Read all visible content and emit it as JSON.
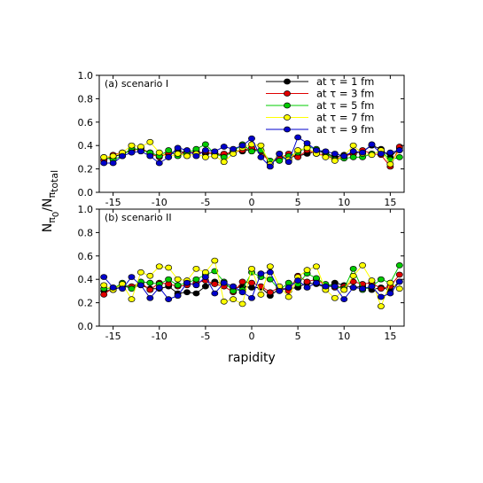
{
  "chart_data": {
    "type": "line",
    "xlabel": "rapidity",
    "ylabel": {
      "main": "N",
      "sub1": "π",
      "sub2": "0",
      "slash": "/N",
      "sub3": "π",
      "sub4": "total"
    },
    "xlim": [
      -16.5,
      16.5
    ],
    "ylim": [
      0,
      1
    ],
    "x_ticks": [
      -15,
      -10,
      -5,
      0,
      5,
      10,
      15
    ],
    "y_ticks": [
      0.0,
      0.2,
      0.4,
      0.6,
      0.8,
      1.0
    ],
    "y_tick_labels": [
      "0.0",
      "0.2",
      "0.4",
      "0.6",
      "0.8",
      "1.0"
    ],
    "x": [
      -16,
      -15,
      -14,
      -13,
      -12,
      -11,
      -10,
      -9,
      -8,
      -7,
      -6,
      -5,
      -4,
      -3,
      -2,
      -1,
      0,
      1,
      2,
      3,
      4,
      5,
      6,
      7,
      8,
      9,
      10,
      11,
      12,
      13,
      14,
      15,
      16
    ],
    "legend_entries": [
      {
        "prefix": "at",
        "tau": "τ",
        "suffix": "= 1 fm"
      },
      {
        "prefix": "at",
        "tau": "τ",
        "suffix": "= 3 fm"
      },
      {
        "prefix": "at",
        "tau": "τ",
        "suffix": "= 5 fm"
      },
      {
        "prefix": "at",
        "tau": "τ",
        "suffix": "= 7 fm"
      },
      {
        "prefix": "at",
        "tau": "τ",
        "suffix": "= 9 fm"
      }
    ],
    "series_colors": [
      "#000000",
      "#e00000",
      "#00cc00",
      "#ffff00",
      "#0000cc"
    ],
    "panels": [
      {
        "label": "(a) scenario I",
        "series": [
          {
            "values": [
              0.28,
              0.3,
              0.33,
              0.36,
              0.37,
              0.34,
              0.31,
              0.33,
              0.36,
              0.33,
              0.35,
              0.33,
              0.34,
              0.31,
              0.36,
              0.35,
              0.37,
              0.35,
              0.26,
              0.3,
              0.3,
              0.31,
              0.33,
              0.35,
              0.34,
              0.3,
              0.32,
              0.33,
              0.35,
              0.4,
              0.37,
              0.3,
              0.38
            ]
          },
          {
            "values": [
              0.27,
              0.32,
              0.34,
              0.35,
              0.38,
              0.33,
              0.3,
              0.34,
              0.32,
              0.35,
              0.33,
              0.35,
              0.32,
              0.33,
              0.34,
              0.36,
              0.38,
              0.35,
              0.25,
              0.29,
              0.33,
              0.3,
              0.36,
              0.33,
              0.32,
              0.28,
              0.31,
              0.33,
              0.36,
              0.33,
              0.32,
              0.22,
              0.39
            ]
          },
          {
            "values": [
              0.3,
              0.28,
              0.31,
              0.38,
              0.36,
              0.34,
              0.31,
              0.36,
              0.31,
              0.34,
              0.37,
              0.41,
              0.33,
              0.3,
              0.35,
              0.41,
              0.35,
              0.36,
              0.27,
              0.27,
              0.31,
              0.34,
              0.39,
              0.37,
              0.34,
              0.28,
              0.29,
              0.3,
              0.3,
              0.33,
              0.35,
              0.28,
              0.3
            ]
          },
          {
            "values": [
              0.3,
              0.31,
              0.34,
              0.4,
              0.39,
              0.43,
              0.34,
              0.3,
              0.33,
              0.31,
              0.33,
              0.3,
              0.31,
              0.26,
              0.33,
              0.38,
              0.41,
              0.4,
              0.24,
              0.33,
              0.28,
              0.36,
              0.38,
              0.33,
              0.3,
              0.27,
              0.31,
              0.4,
              0.33,
              0.32,
              0.36,
              0.24,
              0.36
            ]
          },
          {
            "values": [
              0.25,
              0.25,
              0.31,
              0.34,
              0.35,
              0.31,
              0.25,
              0.3,
              0.38,
              0.36,
              0.31,
              0.36,
              0.35,
              0.39,
              0.37,
              0.4,
              0.46,
              0.3,
              0.22,
              0.33,
              0.26,
              0.47,
              0.42,
              0.36,
              0.35,
              0.33,
              0.31,
              0.35,
              0.34,
              0.41,
              0.33,
              0.34,
              0.36
            ]
          }
        ]
      },
      {
        "label": "(b) scenario II",
        "series": [
          {
            "values": [
              0.3,
              0.31,
              0.34,
              0.33,
              0.35,
              0.32,
              0.32,
              0.34,
              0.28,
              0.29,
              0.28,
              0.34,
              0.38,
              0.36,
              0.32,
              0.34,
              0.33,
              0.33,
              0.26,
              0.32,
              0.32,
              0.33,
              0.37,
              0.36,
              0.33,
              0.37,
              0.35,
              0.33,
              0.34,
              0.31,
              0.33,
              0.31,
              0.38
            ]
          },
          {
            "values": [
              0.27,
              0.33,
              0.35,
              0.34,
              0.37,
              0.31,
              0.37,
              0.36,
              0.34,
              0.35,
              0.37,
              0.39,
              0.36,
              0.34,
              0.29,
              0.38,
              0.37,
              0.34,
              0.29,
              0.33,
              0.3,
              0.43,
              0.38,
              0.4,
              0.35,
              0.33,
              0.34,
              0.38,
              0.36,
              0.37,
              0.32,
              0.34,
              0.44
            ]
          },
          {
            "values": [
              0.32,
              0.32,
              0.37,
              0.32,
              0.38,
              0.37,
              0.36,
              0.4,
              0.35,
              0.37,
              0.4,
              0.44,
              0.47,
              0.38,
              0.3,
              0.31,
              0.46,
              0.42,
              0.4,
              0.31,
              0.37,
              0.36,
              0.45,
              0.41,
              0.36,
              0.34,
              0.32,
              0.49,
              0.31,
              0.34,
              0.4,
              0.37,
              0.52
            ]
          },
          {
            "values": [
              0.35,
              0.31,
              0.36,
              0.23,
              0.46,
              0.43,
              0.51,
              0.5,
              0.4,
              0.39,
              0.49,
              0.46,
              0.56,
              0.21,
              0.23,
              0.19,
              0.49,
              0.27,
              0.51,
              0.34,
              0.25,
              0.42,
              0.48,
              0.51,
              0.31,
              0.24,
              0.31,
              0.43,
              0.52,
              0.39,
              0.17,
              0.37,
              0.32
            ]
          },
          {
            "values": [
              0.42,
              0.33,
              0.32,
              0.42,
              0.35,
              0.24,
              0.33,
              0.23,
              0.26,
              0.37,
              0.35,
              0.42,
              0.28,
              0.37,
              0.34,
              0.29,
              0.24,
              0.45,
              0.46,
              0.3,
              0.33,
              0.39,
              0.33,
              0.37,
              0.34,
              0.34,
              0.23,
              0.33,
              0.32,
              0.34,
              0.25,
              0.28,
              0.38
            ]
          }
        ]
      }
    ]
  }
}
